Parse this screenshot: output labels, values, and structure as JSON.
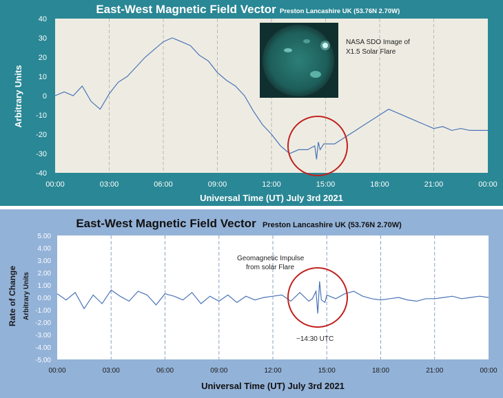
{
  "chart_data": [
    {
      "type": "line",
      "title": "East-West Magnetic Field Vector",
      "subtitle": "Preston Lancashire UK (53.76N 2.70W)",
      "xlabel": "Universal Time (UT) July 3rd 2021",
      "ylabel": "Arbitrary Units",
      "x_ticks": [
        "00:00",
        "03:00",
        "06:00",
        "09:00",
        "12:00",
        "15:00",
        "18:00",
        "21:00",
        "00:00"
      ],
      "xlim": [
        0,
        24
      ],
      "ylim": [
        -40,
        40
      ],
      "y_ticks": [
        "40",
        "30",
        "20",
        "10",
        "0",
        "-10",
        "-20",
        "-30",
        "-40"
      ],
      "series": [
        {
          "color": "#4a73b8",
          "x": [
            0,
            0.5,
            1,
            1.5,
            2,
            2.5,
            3,
            3.5,
            4,
            4.5,
            5,
            5.5,
            6,
            6.5,
            7,
            7.5,
            8,
            8.5,
            9,
            9.5,
            10,
            10.5,
            11,
            11.5,
            12,
            12.5,
            13,
            13.5,
            14,
            14.2,
            14.4,
            14.5,
            14.6,
            14.7,
            14.9,
            15,
            15.5,
            16,
            16.5,
            17,
            17.5,
            18,
            18.5,
            19,
            19.5,
            20,
            20.5,
            21,
            21.5,
            22,
            22.5,
            23,
            23.5,
            24
          ],
          "y": [
            0,
            2,
            0,
            5,
            -3,
            -7,
            1,
            7,
            10,
            15,
            20,
            24,
            28,
            30,
            28,
            26,
            21,
            18,
            12,
            8,
            5,
            0,
            -8,
            -15,
            -20,
            -26,
            -30,
            -28,
            -28,
            -27,
            -26,
            -33,
            -24,
            -28,
            -25,
            -25,
            -25,
            -22,
            -19,
            -16,
            -13,
            -10,
            -7,
            -9,
            -11,
            -13,
            -15,
            -17,
            -16,
            -18,
            -17,
            -18,
            -18,
            -18
          ]
        }
      ],
      "annotations": [
        "NASA SDO Image of X1.5 Solar Flare"
      ]
    },
    {
      "type": "line",
      "title": "East-West Magnetic Field Vector",
      "subtitle": "Preston Lancashire UK (53.76N 2.70W)",
      "xlabel": "Universal Time (UT) July 3rd 2021",
      "ylabel": "Rate of Change",
      "ylabel2": "Arbitrary Units",
      "x_ticks": [
        "00:00",
        "03:00",
        "06:00",
        "09:00",
        "12:00",
        "15:00",
        "18:00",
        "21:00",
        "00:00"
      ],
      "xlim": [
        0,
        24
      ],
      "ylim": [
        -5,
        5
      ],
      "y_ticks": [
        "5.00",
        "4.00",
        "3.00",
        "2.00",
        "1.00",
        "0.00",
        "-1.00",
        "-2.00",
        "-3.00",
        "-4.00",
        "-5.00"
      ],
      "series": [
        {
          "color": "#4a73b8",
          "x": [
            0,
            0.5,
            1,
            1.5,
            2,
            2.5,
            3,
            3.5,
            4,
            4.5,
            5,
            5.5,
            6,
            6.5,
            7,
            7.5,
            8,
            8.5,
            9,
            9.5,
            10,
            10.5,
            11,
            11.5,
            12,
            12.5,
            13,
            13.5,
            14,
            14.2,
            14.4,
            14.5,
            14.6,
            14.7,
            14.9,
            15,
            15.5,
            16,
            16.5,
            17,
            17.5,
            18,
            18.5,
            19,
            19.5,
            20,
            20.5,
            21,
            21.5,
            22,
            22.5,
            23,
            23.5,
            24
          ],
          "y": [
            0.3,
            -0.2,
            0.4,
            -0.9,
            0.2,
            -0.5,
            0.6,
            0.1,
            -0.3,
            0.5,
            0.2,
            -0.6,
            0.3,
            0.1,
            -0.2,
            0.4,
            -0.5,
            0.1,
            -0.3,
            0.2,
            -0.4,
            0.1,
            -0.2,
            0.0,
            0.1,
            0.2,
            -0.3,
            0.4,
            -0.3,
            -0.1,
            0.5,
            -1.3,
            1.3,
            -0.2,
            -0.4,
            0.2,
            -0.1,
            0.3,
            0.5,
            0.1,
            -0.1,
            -0.2,
            -0.1,
            0.0,
            -0.2,
            -0.3,
            -0.1,
            -0.1,
            0.0,
            0.1,
            -0.1,
            0.0,
            0.1,
            0.0
          ]
        }
      ],
      "annotations": [
        "Geomagnetic Impulse",
        "from solar Flare",
        "~14:30 UTC"
      ]
    }
  ]
}
